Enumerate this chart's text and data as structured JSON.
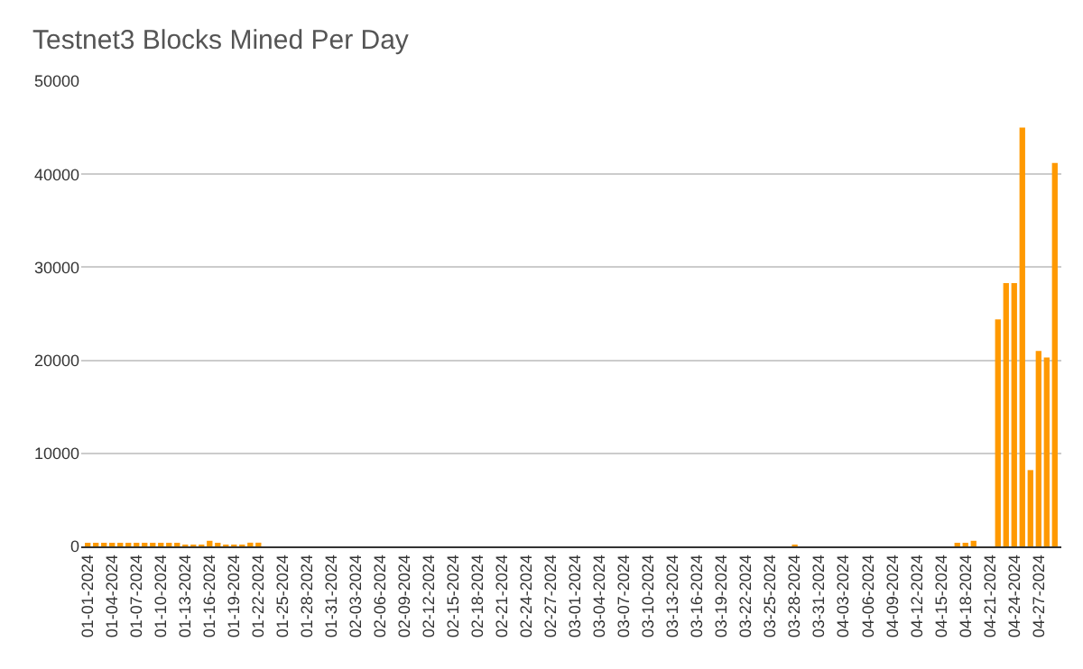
{
  "chart_data": {
    "type": "bar",
    "title": "Testnet3 Blocks Mined Per Day",
    "categories": [
      "01-01-2024",
      null,
      null,
      "01-04-2024",
      null,
      null,
      "01-07-2024",
      null,
      null,
      "01-10-2024",
      null,
      null,
      "01-13-2024",
      null,
      null,
      "01-16-2024",
      null,
      null,
      "01-19-2024",
      null,
      null,
      "01-22-2024",
      null,
      null,
      "01-25-2024",
      null,
      null,
      "01-28-2024",
      null,
      null,
      "01-31-2024",
      null,
      null,
      "02-03-2024",
      null,
      null,
      "02-06-2024",
      null,
      null,
      "02-09-2024",
      null,
      null,
      "02-12-2024",
      null,
      null,
      "02-15-2024",
      null,
      null,
      "02-18-2024",
      null,
      null,
      "02-21-2024",
      null,
      null,
      "02-24-2024",
      null,
      null,
      "02-27-2024",
      null,
      null,
      "03-01-2024",
      null,
      null,
      "03-04-2024",
      null,
      null,
      "03-07-2024",
      null,
      null,
      "03-10-2024",
      null,
      null,
      "03-13-2024",
      null,
      null,
      "03-16-2024",
      null,
      null,
      "03-19-2024",
      null,
      null,
      "03-22-2024",
      null,
      null,
      "03-25-2024",
      null,
      null,
      "03-28-2024",
      null,
      null,
      "03-31-2024",
      null,
      null,
      "04-03-2024",
      null,
      null,
      "04-06-2024",
      null,
      null,
      "04-09-2024",
      null,
      null,
      "04-12-2024",
      null,
      null,
      "04-15-2024",
      null,
      null,
      "04-18-2024",
      null,
      null,
      "04-21-2024",
      null,
      null,
      "04-24-2024",
      null,
      null,
      "04-27-2024",
      null,
      null
    ],
    "values": [
      200,
      200,
      200,
      200,
      200,
      200,
      200,
      200,
      200,
      200,
      200,
      200,
      100,
      100,
      100,
      600,
      200,
      100,
      100,
      100,
      400,
      400,
      0,
      0,
      0,
      0,
      0,
      0,
      0,
      0,
      0,
      0,
      0,
      0,
      0,
      0,
      0,
      0,
      0,
      0,
      0,
      0,
      0,
      0,
      0,
      0,
      0,
      0,
      0,
      0,
      0,
      0,
      0,
      0,
      0,
      0,
      0,
      0,
      0,
      0,
      0,
      0,
      0,
      0,
      0,
      0,
      0,
      0,
      0,
      0,
      0,
      0,
      0,
      0,
      0,
      0,
      0,
      0,
      0,
      0,
      0,
      0,
      0,
      0,
      0,
      0,
      0,
      150,
      0,
      0,
      0,
      0,
      0,
      0,
      0,
      0,
      0,
      0,
      0,
      0,
      0,
      0,
      0,
      0,
      0,
      0,
      0,
      300,
      200,
      600,
      0,
      0,
      24400,
      28300,
      28300,
      45000,
      8200,
      21000,
      20300,
      41200
    ],
    "color": "#ff9900",
    "ylim": [
      0,
      50000
    ],
    "yticks": [
      0,
      10000,
      20000,
      30000,
      40000,
      50000
    ],
    "grid": "y"
  }
}
